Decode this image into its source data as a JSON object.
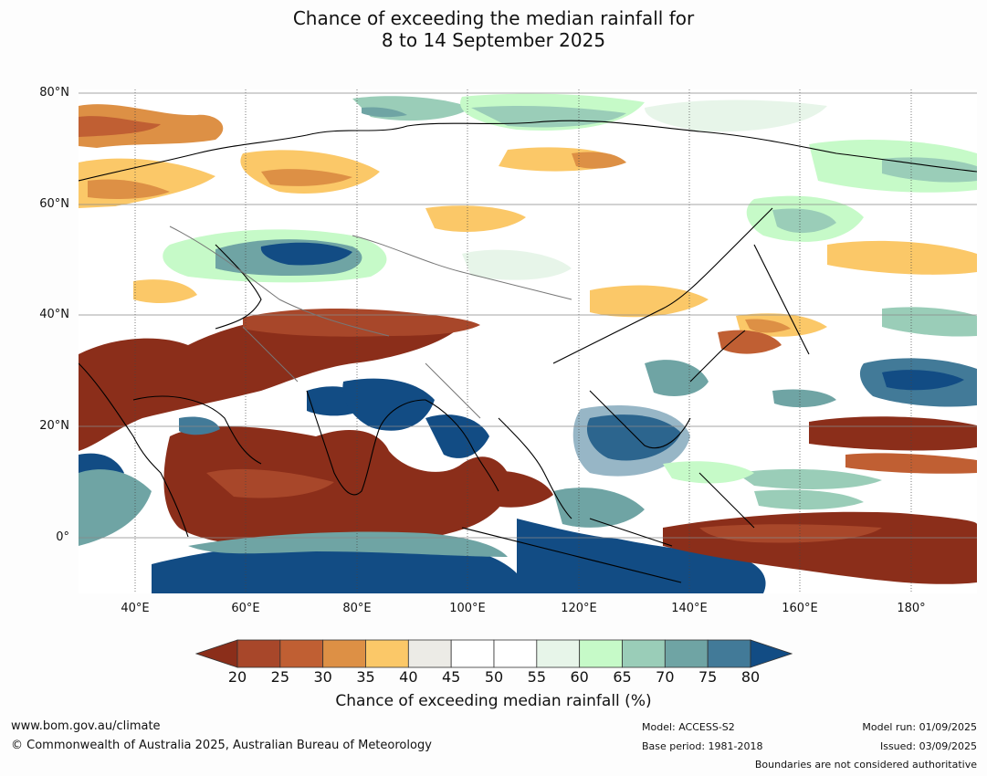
{
  "title": {
    "line1": "Chance of exceeding the median rainfall for",
    "line2": "8 to 14 September 2025"
  },
  "map": {
    "lat_labels": [
      "80°N",
      "60°N",
      "40°N",
      "20°N",
      "0°"
    ],
    "lon_labels": [
      "40°E",
      "60°E",
      "80°E",
      "100°E",
      "120°E",
      "140°E",
      "160°E",
      "180°"
    ]
  },
  "colorbar": {
    "ticks": [
      "20",
      "25",
      "30",
      "35",
      "40",
      "45",
      "50",
      "55",
      "60",
      "65",
      "70",
      "75",
      "80"
    ],
    "colors": [
      "#8b2e1a",
      "#a8472a",
      "#c05f33",
      "#dd9045",
      "#fbc868",
      "#ecebe6",
      "#ffffff",
      "#ffffff",
      "#e7f5e9",
      "#c6fac8",
      "#9acdb8",
      "#6fa4a4",
      "#427a98",
      "#124c84"
    ],
    "label": "Chance of exceeding median rainfall (%)"
  },
  "footer": {
    "website": "www.bom.gov.au/climate",
    "copyright": "© Commonwealth of Australia 2025, Australian Bureau of Meteorology",
    "model": "Model: ACCESS-S2",
    "base_period": "Base period: 1981-2018",
    "model_run": "Model run: 01/09/2025",
    "issued": "Issued: 03/09/2025",
    "disclaimer": "Boundaries are not considered authoritative"
  }
}
